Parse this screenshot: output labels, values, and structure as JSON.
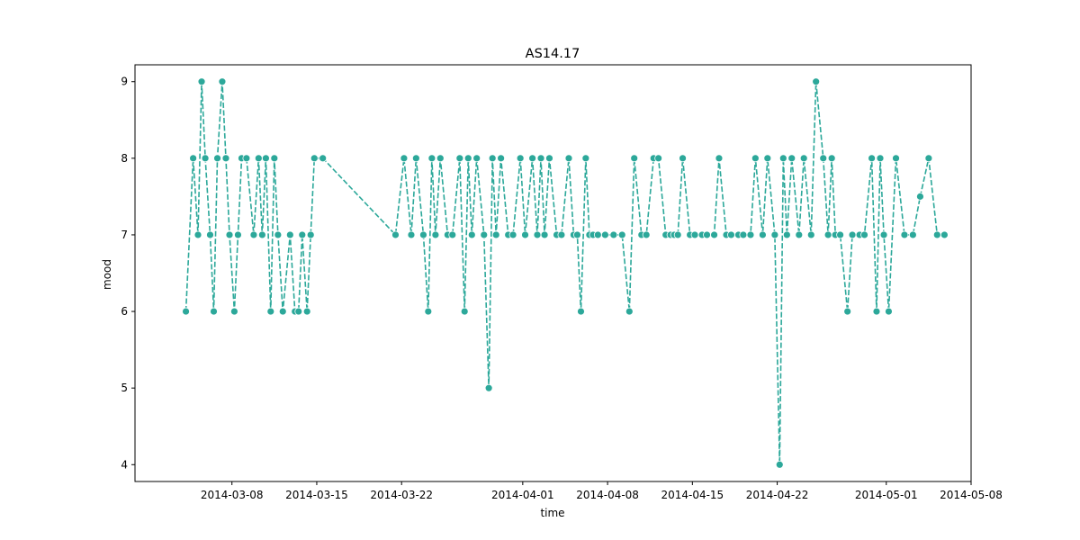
{
  "chart_data": {
    "type": "line",
    "title": "AS14.17",
    "xlabel": "time",
    "ylabel": "mood",
    "x_ticks": [
      "2014-03-08",
      "2014-03-15",
      "2014-03-22",
      "2014-04-01",
      "2014-04-08",
      "2014-04-15",
      "2014-04-22",
      "2014-05-01",
      "2014-05-08"
    ],
    "y_ticks": [
      4,
      5,
      6,
      7,
      8,
      9
    ],
    "xlim": [
      "2014-02-28",
      "2014-05-08"
    ],
    "ylim": [
      3.78,
      9.22
    ],
    "line_style": "dashed",
    "marker": "circle",
    "color": "#2ca89a",
    "grid": false,
    "series": [
      {
        "x": [
          "2014-03-04",
          "2014-03-04",
          "2014-03-05",
          "2014-03-05",
          "2014-03-05",
          "2014-03-06",
          "2014-03-06",
          "2014-03-06",
          "2014-03-07",
          "2014-03-07",
          "2014-03-07",
          "2014-03-08",
          "2014-03-08",
          "2014-03-08",
          "2014-03-09",
          "2014-03-09",
          "2014-03-10",
          "2014-03-10",
          "2014-03-10",
          "2014-03-11",
          "2014-03-11",
          "2014-03-11",
          "2014-03-12",
          "2014-03-12",
          "2014-03-13",
          "2014-03-13",
          "2014-03-13",
          "2014-03-14",
          "2014-03-14",
          "2014-03-14",
          "2014-03-15",
          "2014-03-21",
          "2014-03-22",
          "2014-03-22",
          "2014-03-23",
          "2014-03-23",
          "2014-03-24",
          "2014-03-24",
          "2014-03-24",
          "2014-03-25",
          "2014-03-25",
          "2014-03-26",
          "2014-03-26",
          "2014-03-27",
          "2014-03-27",
          "2014-03-27",
          "2014-03-28",
          "2014-03-28",
          "2014-03-29",
          "2014-03-29",
          "2014-03-29",
          "2014-03-30",
          "2014-03-30",
          "2014-03-31",
          "2014-03-31",
          "2014-04-01",
          "2014-04-01",
          "2014-04-02",
          "2014-04-02",
          "2014-04-02",
          "2014-04-03",
          "2014-04-03",
          "2014-04-04",
          "2014-04-04",
          "2014-04-05",
          "2014-04-05",
          "2014-04-05",
          "2014-04-06",
          "2014-04-06",
          "2014-04-06",
          "2014-04-07",
          "2014-04-07",
          "2014-04-08",
          "2014-04-09",
          "2014-04-09",
          "2014-04-10",
          "2014-04-10",
          "2014-04-11",
          "2014-04-11",
          "2014-04-12",
          "2014-04-12",
          "2014-04-13",
          "2014-04-13",
          "2014-04-13",
          "2014-04-14",
          "2014-04-14",
          "2014-04-15",
          "2014-04-15",
          "2014-04-16",
          "2014-04-16",
          "2014-04-17",
          "2014-04-17",
          "2014-04-18",
          "2014-04-18",
          "2014-04-19",
          "2014-04-19",
          "2014-04-20",
          "2014-04-20",
          "2014-04-21",
          "2014-04-21",
          "2014-04-22",
          "2014-04-22",
          "2014-04-22",
          "2014-04-23",
          "2014-04-23",
          "2014-04-24",
          "2014-04-24",
          "2014-04-25",
          "2014-04-25",
          "2014-04-26",
          "2014-04-26",
          "2014-04-26",
          "2014-04-27",
          "2014-04-27",
          "2014-04-28",
          "2014-04-28",
          "2014-04-29",
          "2014-04-29",
          "2014-04-30",
          "2014-04-30",
          "2014-04-30",
          "2014-05-01",
          "2014-05-01",
          "2014-05-02",
          "2014-05-03",
          "2014-05-03",
          "2014-05-04",
          "2014-05-05",
          "2014-05-05"
        ],
        "y": [
          6,
          8,
          7,
          9,
          8,
          7,
          6,
          8,
          9,
          8,
          7,
          6,
          7,
          8,
          8,
          7,
          8,
          7,
          8,
          6,
          8,
          7,
          6,
          7,
          6,
          6,
          7,
          6,
          7,
          8,
          8,
          7,
          8,
          7,
          8,
          7,
          6,
          8,
          7,
          8,
          7,
          7,
          8,
          6,
          8,
          7,
          8,
          7,
          5,
          8,
          7,
          8,
          7,
          7,
          8,
          7,
          8,
          7,
          8,
          7,
          8,
          7,
          7,
          8,
          7,
          7,
          6,
          8,
          7,
          7,
          7,
          7,
          7,
          7,
          6,
          8,
          7,
          7,
          8,
          8,
          7,
          7,
          7,
          7,
          8,
          7,
          7,
          7,
          7,
          7,
          8,
          7,
          7,
          7,
          7,
          7,
          8,
          7,
          8,
          7,
          4,
          8,
          7,
          8,
          7,
          8,
          7,
          9,
          8,
          7,
          8,
          7,
          7,
          6,
          7,
          7,
          7,
          8,
          6,
          8,
          7,
          6,
          8,
          7,
          7,
          7.5,
          8,
          7,
          7
        ]
      }
    ]
  }
}
